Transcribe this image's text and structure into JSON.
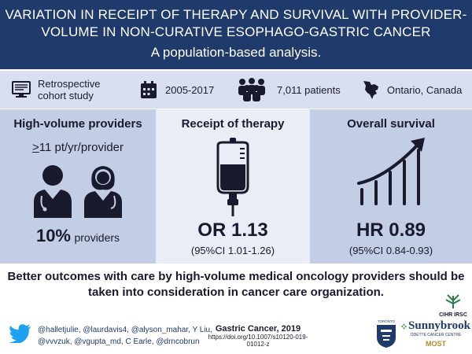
{
  "header": {
    "title_line1": "VARIATION IN RECEIPT OF THERAPY AND SURVIVAL WITH PROVIDER-",
    "title_line2": "VOLUME IN NON-CURATIVE ESOPHAGO-GASTRIC CANCER",
    "subtitle": "A population-based analysis."
  },
  "info": {
    "design_line1": "Retrospective",
    "design_line2": "cohort study",
    "years": "2005-2017",
    "patients": "7,011 patients",
    "location": "Ontario, Canada"
  },
  "panels": {
    "volume": {
      "title": "High-volume providers",
      "threshold_prefix": ">",
      "threshold_rest": "11 pt/yr/provider",
      "stat": "10%",
      "stat_label": "providers"
    },
    "therapy": {
      "title": "Receipt of therapy",
      "stat": "OR 1.13",
      "ci": "(95%CI 1.01-1.26)"
    },
    "survival": {
      "title": "Overall survival",
      "stat": "HR 0.89",
      "ci": "(95%CI 0.84-0.93)"
    }
  },
  "conclusion": {
    "line1": "Better outcomes with care by high-volume medical oncology providers should be",
    "line2": "taken into consideration in cancer care organization."
  },
  "footer": {
    "handles_line1": "@halletjulie, @laurdavis4, @alyson_mahar, Y Liu,",
    "handles_line2": "@vvvzuk, @vgupta_md, C Earle, @drncobrun",
    "journal": "Gastric Cancer, 2019",
    "doi": "https://doi.org/10.1007/s10120-019-01012-z",
    "logo_cihr": "CIHR IRSC",
    "logo_toronto": "TORONTO",
    "logo_sunnybrook": "Sunnybrook",
    "logo_odette": "ODETTE CANCER CENTRE",
    "logo_most": "MOST"
  },
  "colors": {
    "header_bg": "#1f3a6b",
    "strip_bg": "#d9dff0",
    "panel_dark": "#c4cde6",
    "panel_light": "#e9edf6",
    "text": "#1a1a2e",
    "twitter": "#1da1f2"
  },
  "icons": [
    "computer-icon",
    "calendar-icon",
    "crowd-icon",
    "ontario-map-icon",
    "doctors-icon",
    "iv-bag-icon",
    "rising-bars-icon",
    "twitter-icon"
  ]
}
